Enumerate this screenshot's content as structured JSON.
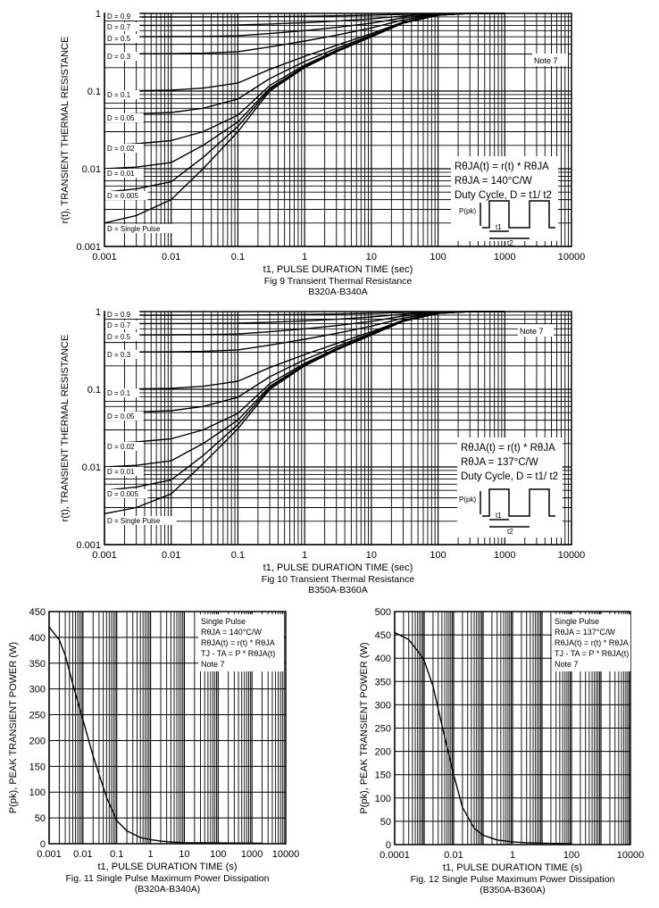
{
  "chart_data": [
    {
      "type": "line",
      "id": "fig9",
      "xscale": "log",
      "yscale": "log",
      "xlim": [
        0.001,
        10000
      ],
      "ylim": [
        0.001,
        1
      ],
      "grid": true,
      "xlabel": "t1, PULSE DURATION TIME (sec)",
      "ylabel": "r(t), TRANSIENT THERMAL RESISTANCE",
      "caption": "Fig 9 Transient Thermal Resistance",
      "subcaption": "B320A-B340A",
      "xticks": [
        "0.001",
        "0.01",
        "0.1",
        "1",
        "10",
        "100",
        "1000",
        "10000"
      ],
      "yticks": [
        "0.001",
        "0.01",
        "0.1",
        "1"
      ],
      "note": "Note 7",
      "legend_lines": [
        "RθJA(t) = r(t) * RθJA",
        "RθJA = 140°C/W",
        "Duty Cycle, D = t1/ t2"
      ],
      "pulse_labels": {
        "ppk": "P(pk)",
        "t1": "t1",
        "t2": "t2"
      },
      "x": [
        0.001,
        0.003,
        0.01,
        0.03,
        0.1,
        0.3,
        1,
        3,
        10,
        30,
        100,
        300,
        1000
      ],
      "series": [
        {
          "name": "D = 0.9",
          "values": [
            0.9,
            0.9,
            0.9,
            0.901,
            0.903,
            0.91,
            0.92,
            0.932,
            0.95,
            0.975,
            0.995,
            1,
            1
          ]
        },
        {
          "name": "D = 0.7",
          "values": [
            0.701,
            0.701,
            0.701,
            0.703,
            0.709,
            0.73,
            0.76,
            0.796,
            0.85,
            0.925,
            0.985,
            1,
            1
          ]
        },
        {
          "name": "D = 0.5",
          "values": [
            0.501,
            0.501,
            0.502,
            0.505,
            0.515,
            0.55,
            0.6,
            0.66,
            0.75,
            0.875,
            0.975,
            1,
            1
          ]
        },
        {
          "name": "D = 0.3",
          "values": [
            0.301,
            0.302,
            0.303,
            0.307,
            0.321,
            0.37,
            0.44,
            0.524,
            0.65,
            0.825,
            0.965,
            1,
            1
          ]
        },
        {
          "name": "D = 0.1",
          "values": [
            0.1,
            0.101,
            0.103,
            0.109,
            0.127,
            0.19,
            0.28,
            0.388,
            0.55,
            0.775,
            0.955,
            1,
            1
          ]
        },
        {
          "name": "D = 0.05",
          "values": [
            0.05,
            0.051,
            0.053,
            0.06,
            0.079,
            0.145,
            0.24,
            0.354,
            0.525,
            0.763,
            0.953,
            1,
            1
          ]
        },
        {
          "name": "D = 0.02",
          "values": [
            0.02,
            0.021,
            0.023,
            0.03,
            0.049,
            0.118,
            0.216,
            0.334,
            0.51,
            0.755,
            0.951,
            1,
            1
          ]
        },
        {
          "name": "D = 0.01",
          "values": [
            0.01,
            0.0105,
            0.012,
            0.02,
            0.04,
            0.109,
            0.208,
            0.327,
            0.505,
            0.753,
            0.95,
            1,
            1
          ]
        },
        {
          "name": "D = 0.005",
          "values": [
            0.005,
            0.0055,
            0.0068,
            0.014,
            0.035,
            0.105,
            0.204,
            0.323,
            0.5,
            0.751,
            0.95,
            1,
            1
          ]
        },
        {
          "name": "D = Single Pulse",
          "values": [
            0.002,
            0.0025,
            0.004,
            0.01,
            0.03,
            0.1,
            0.2,
            0.32,
            0.5,
            0.75,
            0.95,
            1,
            1
          ]
        }
      ]
    },
    {
      "type": "line",
      "id": "fig10",
      "xscale": "log",
      "yscale": "log",
      "xlim": [
        0.001,
        10000
      ],
      "ylim": [
        0.001,
        1
      ],
      "grid": true,
      "xlabel": "t1, PULSE DURATION TIME (sec)",
      "ylabel": "r(t), TRANSIENT THERMAL RESISTANCE",
      "caption": "Fig 10 Transient Thermal Resistance",
      "subcaption": "B350A-B360A",
      "xticks": [
        "0.001",
        "0.01",
        "0.1",
        "1",
        "10",
        "100",
        "1000",
        "10000"
      ],
      "yticks": [
        "0.001",
        "0.01",
        "0.1",
        "1"
      ],
      "note": "Note 7",
      "legend_lines": [
        "RθJA(t) = r(t) * RθJA",
        "RθJA = 137°C/W",
        "Duty Cycle, D = t1/ t2"
      ],
      "pulse_labels": {
        "ppk": "P(pk)",
        "t1": "t1",
        "t2": "t2"
      },
      "x": [
        0.001,
        0.003,
        0.01,
        0.03,
        0.1,
        0.3,
        1,
        3,
        10,
        30,
        100,
        300,
        1000
      ],
      "series": [
        {
          "name": "D = 0.9",
          "values": [
            0.9,
            0.9,
            0.9,
            0.901,
            0.903,
            0.91,
            0.92,
            0.932,
            0.95,
            0.975,
            0.995,
            1,
            1
          ]
        },
        {
          "name": "D = 0.7",
          "values": [
            0.701,
            0.701,
            0.701,
            0.703,
            0.709,
            0.73,
            0.76,
            0.796,
            0.85,
            0.925,
            0.985,
            1,
            1
          ]
        },
        {
          "name": "D = 0.5",
          "values": [
            0.501,
            0.501,
            0.502,
            0.505,
            0.515,
            0.55,
            0.6,
            0.66,
            0.75,
            0.875,
            0.975,
            1,
            1
          ]
        },
        {
          "name": "D = 0.3",
          "values": [
            0.301,
            0.302,
            0.303,
            0.307,
            0.321,
            0.37,
            0.44,
            0.524,
            0.65,
            0.825,
            0.965,
            1,
            1
          ]
        },
        {
          "name": "D = 0.1",
          "values": [
            0.1,
            0.101,
            0.103,
            0.109,
            0.127,
            0.19,
            0.28,
            0.388,
            0.55,
            0.775,
            0.955,
            1,
            1
          ]
        },
        {
          "name": "D = 0.05",
          "values": [
            0.05,
            0.051,
            0.053,
            0.06,
            0.079,
            0.145,
            0.24,
            0.354,
            0.525,
            0.763,
            0.953,
            1,
            1
          ]
        },
        {
          "name": "D = 0.02",
          "values": [
            0.02,
            0.021,
            0.023,
            0.03,
            0.049,
            0.118,
            0.216,
            0.334,
            0.51,
            0.755,
            0.951,
            1,
            1
          ]
        },
        {
          "name": "D = 0.01",
          "values": [
            0.01,
            0.0105,
            0.012,
            0.02,
            0.04,
            0.109,
            0.208,
            0.327,
            0.505,
            0.753,
            0.95,
            1,
            1
          ]
        },
        {
          "name": "D = 0.005",
          "values": [
            0.005,
            0.0055,
            0.0068,
            0.014,
            0.035,
            0.105,
            0.204,
            0.323,
            0.5,
            0.751,
            0.95,
            1,
            1
          ]
        },
        {
          "name": "D = Single Pulse",
          "values": [
            0.0025,
            0.003,
            0.0045,
            0.011,
            0.031,
            0.1,
            0.2,
            0.32,
            0.5,
            0.75,
            0.95,
            1,
            1
          ]
        }
      ]
    },
    {
      "type": "line",
      "id": "fig11",
      "xscale": "log",
      "yscale": "linear",
      "xlim": [
        0.001,
        10000
      ],
      "ylim": [
        0,
        450
      ],
      "grid": true,
      "xlabel": "t1, PULSE DURATION TIME (s)",
      "ylabel": "P(pk), PEAK TRANSIENT  POWER (W)",
      "caption": "Fig. 11 Single Pulse Maximum Power Dissipation",
      "subcaption": "(B320A-B340A)",
      "xticks": [
        "0.001",
        "0.01",
        "0.1",
        "1",
        "10",
        "100",
        "1000",
        "10000"
      ],
      "yticks": [
        "0",
        "50",
        "100",
        "150",
        "200",
        "250",
        "300",
        "350",
        "400",
        "450"
      ],
      "legend_lines": [
        "Single Pulse",
        "RθJA = 140°C/W",
        "RθJA(t) = r(t) * RθJA",
        "TJ - TA = P * RθJA(t)",
        "Note 7"
      ],
      "x": [
        0.001,
        0.002,
        0.003,
        0.005,
        0.01,
        0.02,
        0.05,
        0.1,
        0.2,
        0.5,
        1,
        2,
        5,
        10,
        100,
        2000
      ],
      "values": [
        420,
        395,
        365,
        310,
        240,
        170,
        90,
        45,
        25,
        12,
        8,
        5,
        3,
        2,
        1.5,
        1
      ]
    },
    {
      "type": "line",
      "id": "fig12",
      "xscale": "log",
      "yscale": "linear",
      "xlim": [
        0.0001,
        10000
      ],
      "ylim": [
        0,
        500
      ],
      "grid": true,
      "xlabel": "t1, PULSE DURATION TIME (s)",
      "ylabel": "P(pk), PEAK TRANSIENT  POWER (W)",
      "caption": "Fig. 12 Single Pulse Maximum Power Dissipation",
      "subcaption": "(B350A-B360A)",
      "xticks": [
        "0.0001",
        "0.01",
        "1",
        "100",
        "10000"
      ],
      "yticks": [
        "0",
        "50",
        "100",
        "150",
        "200",
        "250",
        "300",
        "350",
        "400",
        "450",
        "500"
      ],
      "legend_lines": [
        "Single Pulse",
        "RθJA = 137°C/W",
        "RθJA(t) = r(t) * RθJA",
        "TJ - TA = P * RθJA(t)",
        "Note 7"
      ],
      "x": [
        0.0001,
        0.0003,
        0.0007,
        0.001,
        0.002,
        0.005,
        0.01,
        0.02,
        0.05,
        0.1,
        0.3,
        1,
        3,
        10,
        100
      ],
      "values": [
        455,
        440,
        410,
        395,
        340,
        230,
        150,
        80,
        35,
        20,
        10,
        6,
        4,
        3,
        2
      ]
    }
  ]
}
